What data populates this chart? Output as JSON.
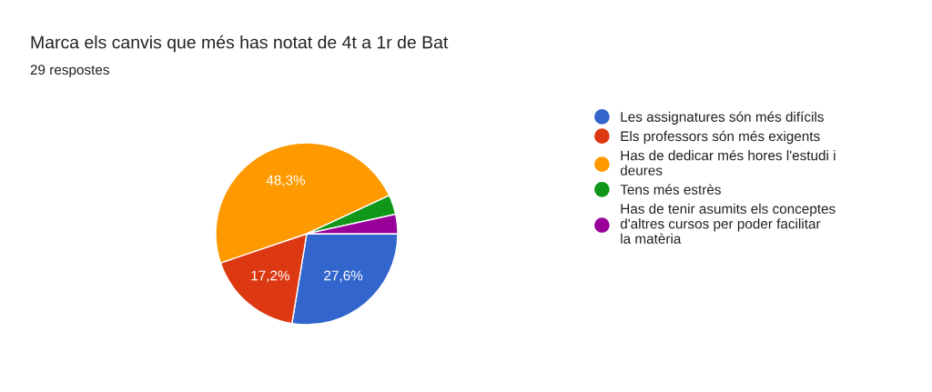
{
  "chart_data": {
    "type": "pie",
    "title": "Marca els canvis que més has notat de 4t a 1r de Bat",
    "subtitle": "29 respostes",
    "categories": [
      "Les assignatures són més difícils",
      "Els professors són més exigents",
      "Has de dedicar més hores l'estudi i deures",
      "Tens més estrès",
      "Has de tenir asumits els conceptes d'altres cursos per poder facilitar la matèria"
    ],
    "values": [
      27.6,
      17.2,
      48.3,
      3.45,
      3.45
    ],
    "value_labels": [
      "27,6%",
      "17,2%",
      "48,3%",
      null,
      null
    ],
    "colors": [
      "#3366cc",
      "#dc3912",
      "#ff9900",
      "#109618",
      "#990099"
    ],
    "legend": "right"
  }
}
